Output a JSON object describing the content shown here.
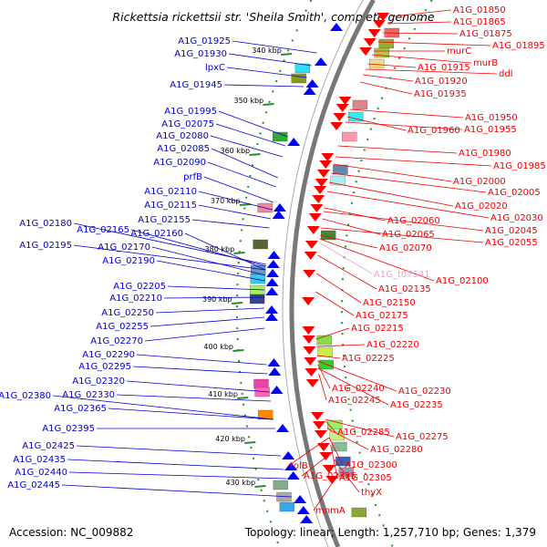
{
  "title": "Rickettsia rickettsii str. 'Sheila Smith', complete genome",
  "accession_text": "Accession: NC_009882",
  "summary_text": "Topology: linear; Length: 1,257,710 bp; Genes: 1,379",
  "colors": {
    "forward_label": "#0000cc",
    "reverse_label": "#ee0000",
    "rna_label": "#f0a0d0",
    "backbone": "#888888",
    "tick": "#2b8a2b",
    "forward_arrow": "#0000ff",
    "reverse_arrow": "#ff0000"
  },
  "scale_labels": [
    {
      "text": "340 kbp"
    },
    {
      "text": "350 kbp"
    },
    {
      "text": "360 kbp"
    },
    {
      "text": "370 kbp"
    },
    {
      "text": "380 kbp"
    },
    {
      "text": "390 kbp"
    },
    {
      "text": "400 kbp"
    },
    {
      "text": "410 kbp"
    },
    {
      "text": "420 kbp"
    },
    {
      "text": "430 kbp"
    }
  ],
  "forward_labels": [
    "A1G_01925",
    "A1G_01930",
    "lpxC",
    "A1G_01945",
    "A1G_01995",
    "A1G_02075",
    "A1G_02080",
    "A1G_02085",
    "A1G_02090",
    "prfB",
    "A1G_02110",
    "A1G_02115",
    "A1G_02155",
    "A1G_02180",
    "A1G_02165",
    "A1G_02160",
    "A1G_02195",
    "A1G_02170",
    "A1G_02190",
    "A1G_02205",
    "A1G_02210",
    "A1G_02250",
    "A1G_02255",
    "A1G_02270",
    "A1G_02290",
    "A1G_02295",
    "A1G_02320",
    "A1G_02380",
    "A1G_02330",
    "A1G_02365",
    "A1G_02395",
    "A1G_02425",
    "A1G_02435",
    "A1G_02440",
    "A1G_02445"
  ],
  "reverse_labels": [
    "A1G_01850",
    "A1G_01865",
    "A1G_01875",
    "A1G_01895",
    "murC",
    "murB",
    "A1G_01915",
    "ddl",
    "A1G_01920",
    "A1G_01935",
    "A1G_01950",
    "A1G_01960",
    "A1G_01955",
    "A1G_01980",
    "A1G_01985",
    "A1G_02000",
    "A1G_02005",
    "A1G_02020",
    "A1G_02030",
    "A1G_02060",
    "A1G_02045",
    "A1G_02065",
    "A1G_02055",
    "A1G_02070",
    "A1G_02100",
    "A1G_02135",
    "A1G_02150",
    "A1G_02175",
    "A1G_02215",
    "A1G_02220",
    "A1G_02225",
    "A1G_02230",
    "A1G_02240",
    "A1G_02245",
    "A1G_02235",
    "A1G_02275",
    "A1G_02285",
    "A1G_02280",
    "A1G_02300",
    "tolB",
    "A1G_02305",
    "A1G_02325",
    "thyX",
    "mnmA"
  ],
  "rna_labels": [
    "A1G_t07541"
  ]
}
